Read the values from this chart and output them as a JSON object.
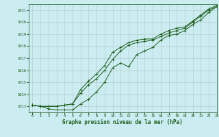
{
  "title": "Graphe pression niveau de la mer (hPa)",
  "background_color": "#cbecf0",
  "grid_color": "#b0c8c8",
  "line_color": "#1a5c1a",
  "xlim": [
    -0.5,
    23
  ],
  "ylim": [
    1012.5,
    1021.5
  ],
  "yticks": [
    1013,
    1014,
    1015,
    1016,
    1017,
    1018,
    1019,
    1020,
    1021
  ],
  "xticks": [
    0,
    1,
    2,
    3,
    4,
    5,
    6,
    7,
    8,
    9,
    10,
    11,
    12,
    13,
    14,
    15,
    16,
    17,
    18,
    19,
    20,
    21,
    22,
    23
  ],
  "series1": [
    1013.1,
    1013.0,
    1013.0,
    1013.0,
    1013.1,
    1013.2,
    1014.1,
    1014.8,
    1015.3,
    1016.0,
    1016.9,
    1017.6,
    1018.1,
    1018.3,
    1018.4,
    1018.5,
    1018.8,
    1019.1,
    1019.3,
    1019.5,
    1020.0,
    1020.5,
    1021.0,
    1021.3
  ],
  "series2": [
    1013.1,
    1013.0,
    1012.8,
    1012.7,
    1012.7,
    1012.7,
    1013.2,
    1013.6,
    1014.2,
    1015.0,
    1016.2,
    1016.6,
    1016.3,
    1017.3,
    1017.6,
    1017.9,
    1018.5,
    1018.9,
    1019.0,
    1019.3,
    1019.8,
    1020.2,
    1020.8,
    1021.3
  ],
  "series3": [
    1013.1,
    1013.0,
    1013.0,
    1013.0,
    1013.1,
    1013.2,
    1014.4,
    1015.1,
    1015.7,
    1016.4,
    1017.5,
    1017.9,
    1018.3,
    1018.5,
    1018.6,
    1018.6,
    1019.0,
    1019.3,
    1019.5,
    1019.6,
    1020.1,
    1020.6,
    1021.1,
    1021.4
  ]
}
